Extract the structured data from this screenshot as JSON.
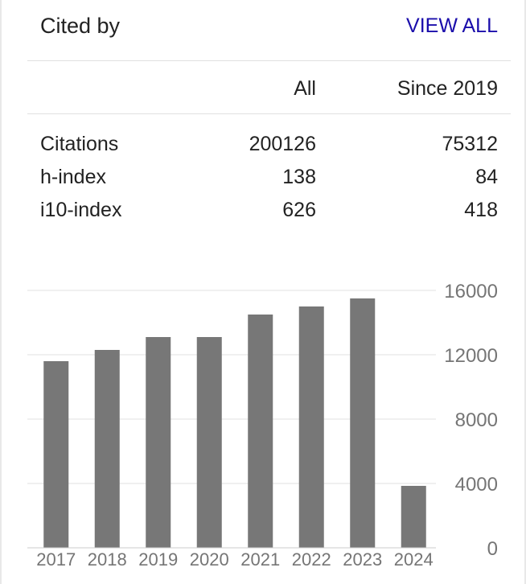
{
  "header": {
    "title": "Cited by",
    "view_all_label": "VIEW ALL"
  },
  "table": {
    "columns": [
      "All",
      "Since 2019"
    ],
    "rows": [
      {
        "label": "Citations",
        "all": "200126",
        "since": "75312"
      },
      {
        "label": "h-index",
        "all": "138",
        "since": "84"
      },
      {
        "label": "i10-index",
        "all": "626",
        "since": "418"
      }
    ]
  },
  "colors": {
    "bar": "#777777",
    "link": "#1a0dab",
    "grid": "#e0e0e0",
    "tick": "#757575"
  },
  "chart_data": {
    "type": "bar",
    "categories": [
      "2017",
      "2018",
      "2019",
      "2020",
      "2021",
      "2022",
      "2023",
      "2024"
    ],
    "values": [
      11600,
      12300,
      13100,
      13100,
      14500,
      15000,
      15500,
      3850
    ],
    "yticks": [
      0,
      4000,
      8000,
      12000,
      16000
    ],
    "ylim": [
      0,
      16000
    ],
    "grid": true,
    "ytick_side": "right"
  }
}
